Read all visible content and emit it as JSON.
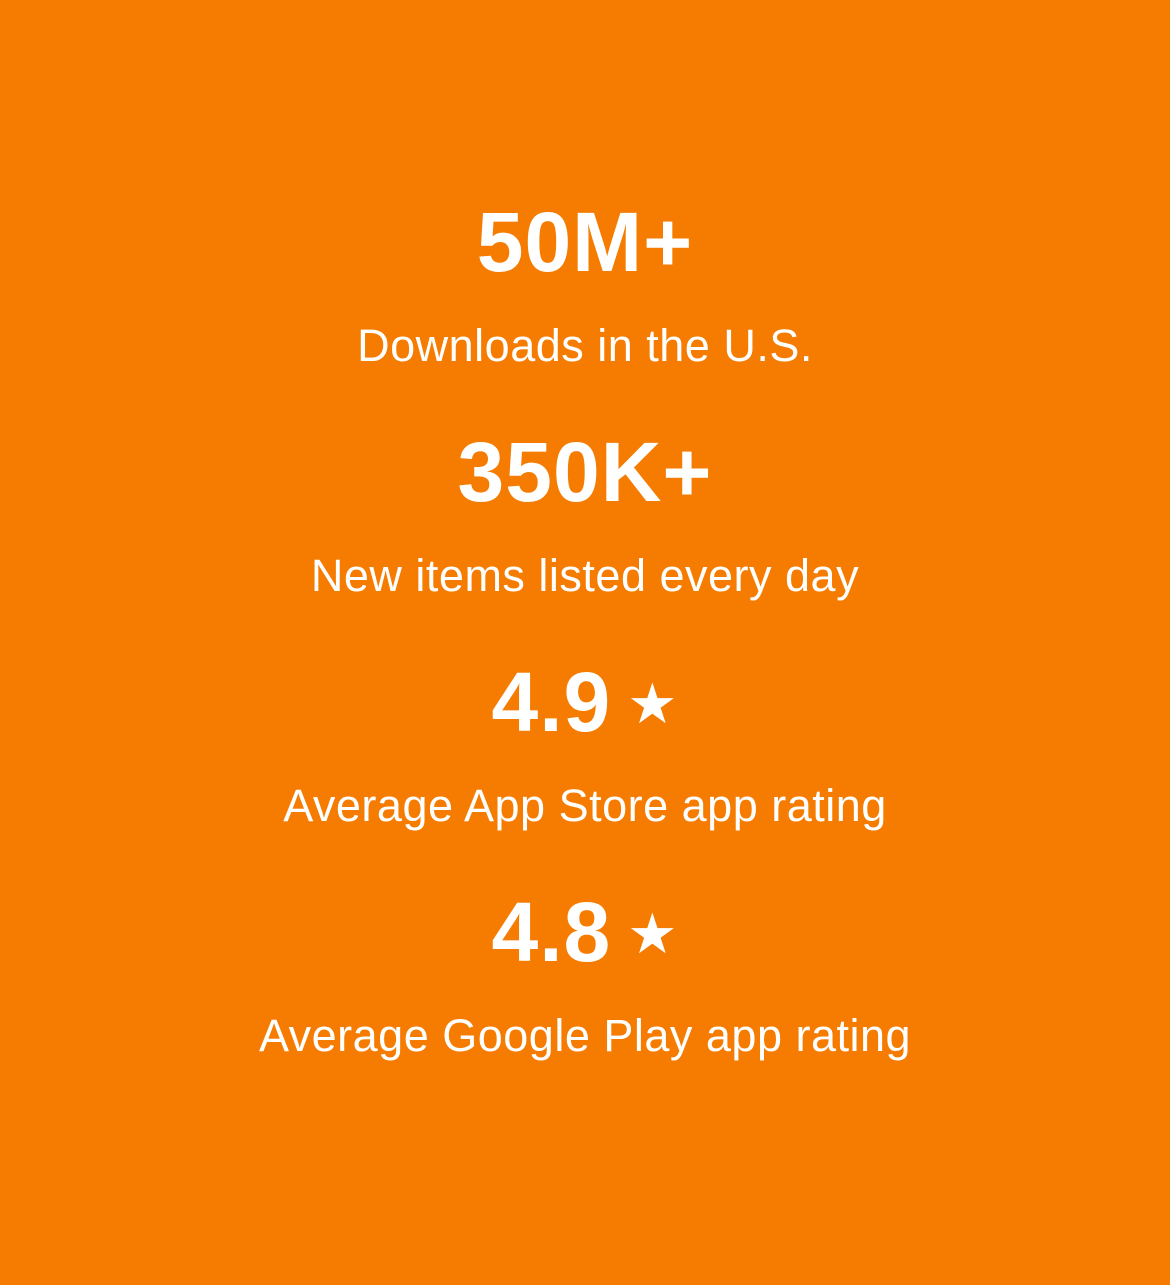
{
  "page": {
    "background_color": "#F57C00",
    "text_color": "#FFFFFF"
  },
  "icons": {
    "star": "★"
  },
  "stats": [
    {
      "value": "50M+",
      "label": "Downloads in the U.S."
    },
    {
      "value": "350K+",
      "label": "New items listed every day"
    },
    {
      "value": "4.9",
      "label": "Average App Store app rating",
      "has_star": true
    },
    {
      "value": "4.8",
      "label": "Average Google Play app rating",
      "has_star": true
    }
  ]
}
